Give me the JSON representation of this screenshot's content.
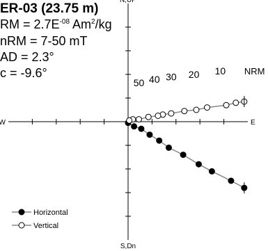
{
  "chart_data": {
    "type": "scatter",
    "title": "ER-03 (23.75 m)",
    "annotations": {
      "nrm_label": "RM = 2.7E",
      "nrm_exp": "-08",
      "nrm_unit": " Am",
      "nrm_unit_exp": "2",
      "nrm_unit_tail": "/kg",
      "af_range": "nRM = 7-50 mT",
      "mad": "AD = 2.3°",
      "inc": "c = -9.6°"
    },
    "axis_labels": {
      "up": "N,UP",
      "down": "S,Dn",
      "west": "W",
      "east": "E"
    },
    "step_labels": [
      "50",
      "40",
      "30",
      "20",
      "10",
      "NRM"
    ],
    "legend": {
      "horizontal": "Horizontal",
      "vertical": "Vertical"
    },
    "colors": {
      "horizontal": "#000000",
      "vertical": "#ffffff",
      "line": "#888888"
    },
    "x_range": [
      -1.0,
      1.0
    ],
    "y_range": [
      -1.0,
      1.0
    ],
    "series": [
      {
        "name": "Horizontal",
        "points": [
          [
            0.97,
            -0.56
          ],
          [
            0.86,
            -0.5
          ],
          [
            0.7,
            -0.42
          ],
          [
            0.59,
            -0.36
          ],
          [
            0.46,
            -0.28
          ],
          [
            0.34,
            -0.22
          ],
          [
            0.26,
            -0.16
          ],
          [
            0.18,
            -0.11
          ],
          [
            0.11,
            -0.06
          ],
          [
            0.05,
            -0.04
          ],
          [
            0.0,
            -0.01
          ]
        ]
      },
      {
        "name": "Vertical",
        "points": [
          [
            0.97,
            0.17
          ],
          [
            0.9,
            0.16
          ],
          [
            0.82,
            0.14
          ],
          [
            0.66,
            0.12
          ],
          [
            0.57,
            0.1
          ],
          [
            0.47,
            0.09
          ],
          [
            0.36,
            0.07
          ],
          [
            0.29,
            0.06
          ],
          [
            0.25,
            0.05
          ],
          [
            0.17,
            0.04
          ],
          [
            0.09,
            0.02
          ],
          [
            0.04,
            0.02
          ],
          [
            0.01,
            0.01
          ]
        ]
      }
    ]
  }
}
